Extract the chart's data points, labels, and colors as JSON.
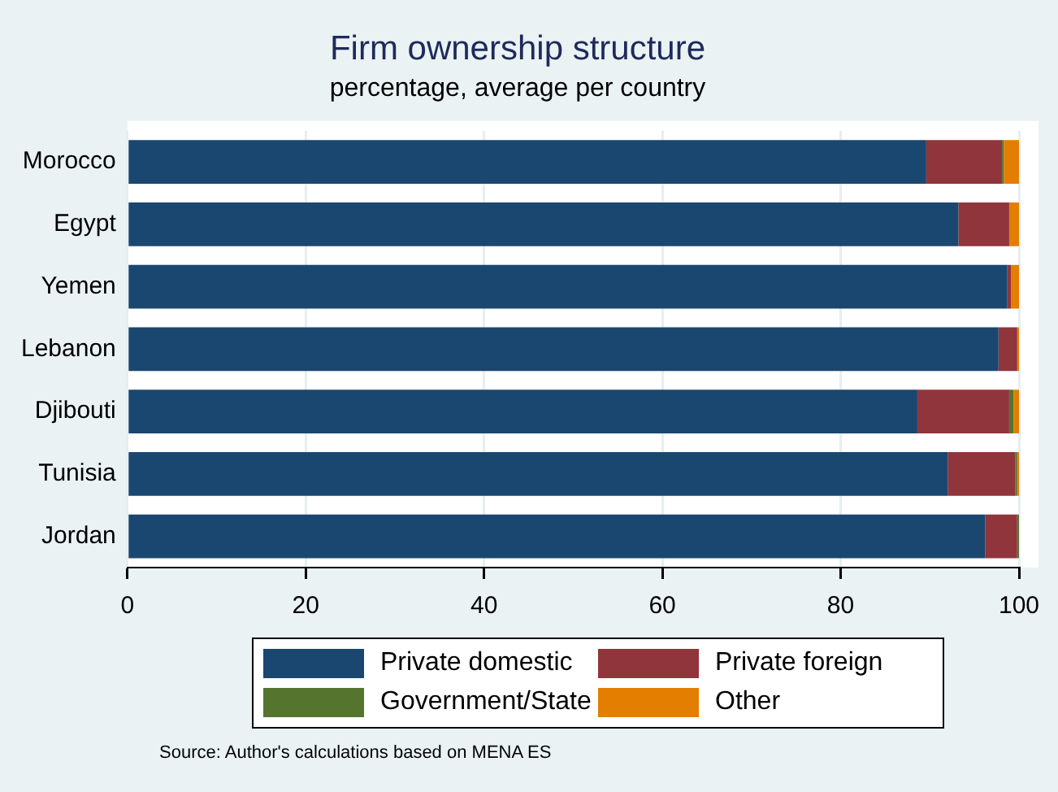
{
  "chart_data": {
    "type": "bar",
    "orientation": "horizontal",
    "stacked": true,
    "title": "Firm ownership structure",
    "subtitle": "percentage, average per country",
    "categories": [
      "Morocco",
      "Egypt",
      "Yemen",
      "Lebanon",
      "Djibouti",
      "Tunisia",
      "Jordan"
    ],
    "series": [
      {
        "name": "Private domestic",
        "color": "#1a476f",
        "values": [
          89.6,
          93.2,
          98.7,
          97.7,
          88.6,
          92.0,
          96.2
        ]
      },
      {
        "name": "Private foreign",
        "color": "#90353b",
        "values": [
          8.5,
          5.7,
          0.4,
          2.1,
          10.3,
          7.6,
          3.6
        ]
      },
      {
        "name": "Government/State",
        "color": "#55752f",
        "values": [
          0.2,
          0,
          0,
          0,
          0.5,
          0.2,
          0.2
        ]
      },
      {
        "name": "Other",
        "color": "#e37e00",
        "values": [
          1.7,
          1.1,
          0.9,
          0.2,
          0.6,
          0.2,
          0
        ]
      }
    ],
    "xlim": [
      0,
      100
    ],
    "xticks": [
      0,
      20,
      40,
      60,
      80,
      100
    ],
    "grid": "x",
    "legend": "bottom",
    "annotations": [
      "Source: Author's calculations based on MENA ES"
    ]
  }
}
